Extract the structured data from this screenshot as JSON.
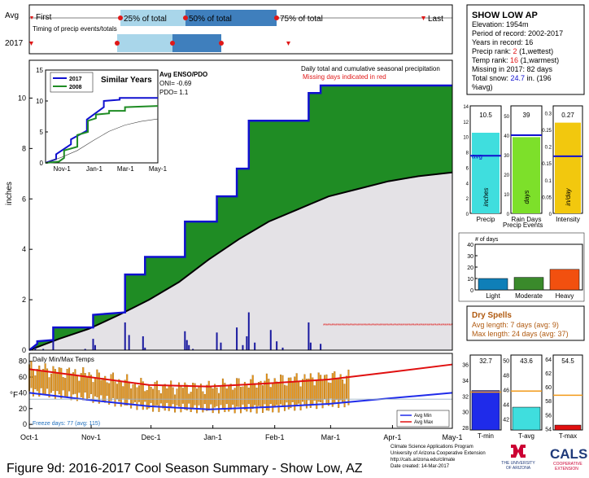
{
  "caption": "Figure 9d: 2016-2017 Cool Season Summary - Show Low, AZ",
  "colors": {
    "precip_green": "#1f8c24",
    "precip_blue": "#1010d0",
    "normal_gray": "#e4e2e6",
    "deficit_brown": "#b38728",
    "timing_light": "#a9d6ea",
    "timing_dark": "#3f7fbd",
    "marker_red": "#e01818",
    "temp_orange": "#e89418",
    "tmin_blue": "#1f2bea",
    "tavg_cyan": "#3fdede",
    "tmax_red": "#e01010",
    "precip_cyan": "#3fdede",
    "raindays_green": "#7de02a",
    "intensity_yellow": "#f2c80e",
    "spell_light": "#0f7fb8",
    "spell_moderate": "#3a8a2b",
    "spell_heavy": "#f2500f",
    "dry_title": "#b05a10"
  },
  "timing": {
    "title": "Timing of precip events/totals",
    "row_labels": [
      "Avg",
      "2017"
    ],
    "markers": [
      "First",
      "25% of total",
      "50% of total",
      "75% of total",
      "Last"
    ]
  },
  "info": {
    "title": "SHOW LOW AP",
    "elevation": "Elevation: 1954m",
    "period": "Period of record: 2002-2017",
    "years": "Years in record: 16",
    "precip_rank_label": "Precip rank:",
    "precip_rank_value": "2",
    "precip_rank_note": "(1,wettest)",
    "temp_rank_label": "Temp rank:",
    "temp_rank_value": "16",
    "temp_rank_note": "(1,warmest)",
    "missing": "Missing in 2017: 82 days",
    "snow_label": "Total snow:",
    "snow_value": "24.7",
    "snow_unit": "in. (196",
    "snow_note": "%avg)"
  },
  "main": {
    "ylabel": "inches",
    "title": "Daily total and cumulative seasonal precipitation",
    "missing_text": "Missing days indicated in red",
    "x_ticks": [
      "Oct-1",
      "Nov-1",
      "Dec-1",
      "Jan-1",
      "Feb-1",
      "Mar-1",
      "Apr-1",
      "May-1"
    ],
    "y_ticks": [
      "0",
      "2",
      "4",
      "6",
      "8",
      "10"
    ]
  },
  "similar": {
    "title": "Similar Years",
    "legend": [
      "2017",
      "2008"
    ],
    "x_ticks": [
      "Nov-1",
      "Jan-1",
      "Mar-1",
      "May-1"
    ],
    "y_ticks": [
      "0",
      "5",
      "10",
      "15"
    ],
    "enso_title": "Avg ENSO/PDO",
    "oni": "ONI= -0.69",
    "pdo": "PDO= 1.1"
  },
  "temps": {
    "title": "Daily Min/Max Temps",
    "ylabel": "°F",
    "y_ticks": [
      "0",
      "20",
      "40",
      "60",
      "80"
    ],
    "freeze": "Freeze days: 77 (avg: 115)",
    "legend": [
      "Avg Min",
      "Avg Max"
    ]
  },
  "precip_events": {
    "title": "Precip Events",
    "panels": [
      {
        "label": "Precip",
        "unit": "inches",
        "value": "10.5",
        "ticks": [
          "0",
          "2",
          "4",
          "6",
          "8",
          "10",
          "12",
          "14"
        ],
        "avg_label": "avg"
      },
      {
        "label": "Rain Days",
        "unit": "days",
        "value": "39",
        "ticks": [
          "0",
          "10",
          "20",
          "30",
          "40",
          "50"
        ]
      },
      {
        "label": "Intensity",
        "unit": "in/day",
        "value": "0.27",
        "ticks": [
          "0",
          "0.05",
          "0.1",
          "0.15",
          "0.2",
          "0.25",
          "0.3"
        ]
      }
    ]
  },
  "spells": {
    "ylabel": "# of days",
    "ticks": [
      "0",
      "10",
      "20",
      "30",
      "40"
    ],
    "categories": [
      "Light",
      "Moderate",
      "Heavy"
    ]
  },
  "dry_spells": {
    "title": "Dry Spells",
    "avg": "Avg length: 7 days (avg: 9)",
    "max": "Max length: 24 days (avg: 37)"
  },
  "temp_summary": {
    "panels": [
      {
        "label": "T-min",
        "value": "32.7",
        "ticks": [
          "28",
          "30",
          "32",
          "34",
          "36"
        ]
      },
      {
        "label": "T-avg",
        "value": "43.6",
        "ticks": [
          "42",
          "44",
          "46",
          "48",
          "50"
        ]
      },
      {
        "label": "T-max",
        "value": "54.5",
        "ticks": [
          "54",
          "56",
          "58",
          "60",
          "62",
          "64"
        ]
      }
    ]
  },
  "footer": {
    "line1": "Climate Science Applications Program",
    "line2": "University of Arizona Cooperative Extension",
    "line3": "http://cals.arizona.edu/climate",
    "line4": "Date created: 14-Mar-2017",
    "ua1": "THE UNIVERSITY",
    "ua2": "OF ARIZONA",
    "cals": "CALS",
    "cals_sub1": "COOPERATIVE",
    "cals_sub2": "EXTENSION"
  },
  "chart_data": [
    {
      "type": "area",
      "title": "Daily total and cumulative seasonal precipitation",
      "ylabel": "inches",
      "ylim": [
        0,
        11.5
      ],
      "x_axis": "days since Oct-1",
      "observed_cumulative": {
        "x": [
          0,
          4,
          4,
          12,
          12,
          32,
          32,
          48,
          48,
          58,
          58,
          78,
          78,
          94,
          94,
          104,
          104,
          110,
          110,
          140,
          140,
          146,
          146,
          176,
          176,
          212
        ],
        "y": [
          0,
          0.25,
          0.35,
          0.4,
          0.9,
          0.9,
          1.4,
          1.5,
          3.0,
          3.0,
          3.7,
          3.7,
          5.1,
          5.1,
          6.1,
          6.1,
          7.2,
          7.2,
          9.1,
          9.1,
          10.2,
          10.2,
          10.5,
          10.5,
          10.5,
          10.5
        ]
      },
      "average_cumulative": {
        "x": [
          0,
          15,
          30,
          45,
          60,
          75,
          90,
          105,
          120,
          135,
          150,
          165,
          180,
          195,
          212
        ],
        "y": [
          0,
          0.45,
          0.85,
          1.4,
          2.0,
          2.7,
          3.6,
          4.4,
          5.1,
          5.6,
          6.1,
          6.4,
          6.7,
          6.9,
          7.05
        ]
      },
      "daily_bars": {
        "x": [
          3,
          7,
          12,
          28,
          32,
          33,
          48,
          50,
          57,
          58,
          78,
          79,
          80,
          82,
          94,
          96,
          104,
          107,
          109,
          110,
          113,
          121,
          124,
          127,
          140,
          141,
          146
        ],
        "y": [
          0.1,
          0.05,
          0.4,
          0.05,
          0.45,
          0.2,
          1.1,
          0.6,
          0.55,
          0.1,
          0.75,
          0.4,
          0.2,
          0.05,
          0.7,
          0.3,
          0.9,
          0.2,
          0.55,
          1.5,
          0.3,
          0.8,
          0.35,
          0.1,
          1.1,
          0.3,
          0.25
        ]
      },
      "missing_days": {
        "start": 148,
        "end": 212
      }
    },
    {
      "type": "line",
      "title": "Similar Years",
      "ylim": [
        0,
        15
      ],
      "x_axis": "days since Oct-1",
      "series": [
        {
          "name": "2017",
          "x": [
            0,
            20,
            20,
            48,
            48,
            78,
            78,
            110,
            110,
            140,
            140,
            212
          ],
          "y": [
            0,
            0.6,
            1.4,
            3.0,
            3.8,
            5.2,
            7.0,
            9.0,
            10.0,
            10.2,
            10.5,
            10.5
          ]
        },
        {
          "name": "2008",
          "x": [
            0,
            25,
            35,
            35,
            60,
            60,
            80,
            80,
            95,
            95,
            120,
            120,
            150,
            150,
            212
          ],
          "y": [
            0,
            0.2,
            0.8,
            2.0,
            2.6,
            4.5,
            5.0,
            6.8,
            7.2,
            7.8,
            8.0,
            8.4,
            8.4,
            9.0,
            9.2
          ]
        },
        {
          "name": "",
          "x": [
            0,
            30,
            60,
            90,
            120,
            150,
            180,
            212
          ],
          "y": [
            0,
            0.9,
            2.0,
            3.6,
            5.1,
            6.1,
            6.7,
            7.1
          ]
        }
      ]
    },
    {
      "type": "line",
      "title": "Daily Min/Max Temps",
      "ylim": [
        -5,
        90
      ],
      "x_axis": "days since Oct-1",
      "series": [
        {
          "name": "Avg Max",
          "x": [
            0,
            30,
            60,
            90,
            120,
            150,
            180,
            212
          ],
          "y": [
            70,
            60,
            50,
            48,
            52,
            57,
            66,
            76
          ]
        },
        {
          "name": "Avg Min",
          "x": [
            0,
            30,
            60,
            90,
            120,
            150,
            180,
            212
          ],
          "y": [
            40,
            31,
            23,
            19,
            22,
            26,
            33,
            40
          ]
        },
        {
          "name": "Freeze line",
          "x": [
            0,
            212
          ],
          "y": [
            32,
            32
          ]
        }
      ],
      "observed_range_days": [
        0,
        160
      ],
      "observed_max_trend": {
        "x": [
          0,
          30,
          60,
          90,
          120,
          150
        ],
        "y": [
          72,
          63,
          48,
          47,
          55,
          60
        ]
      },
      "observed_min_trend": {
        "x": [
          0,
          30,
          60,
          90,
          120,
          150
        ],
        "y": [
          42,
          34,
          22,
          20,
          20,
          27
        ]
      }
    },
    {
      "type": "bar",
      "categories": [
        "Precip",
        "Rain Days",
        "Intensity"
      ],
      "values": [
        10.5,
        39,
        0.27
      ],
      "averages": [
        7.5,
        40,
        0.17
      ],
      "ylims": [
        [
          0,
          14
        ],
        [
          0,
          55
        ],
        [
          0,
          0.32
        ]
      ]
    },
    {
      "type": "bar",
      "ylabel": "# of days",
      "categories": [
        "Light",
        "Moderate",
        "Heavy"
      ],
      "values": [
        10,
        11,
        18
      ],
      "ylim": [
        0,
        40
      ]
    },
    {
      "type": "bar",
      "categories": [
        "T-min",
        "T-avg",
        "T-max"
      ],
      "values": [
        32.7,
        43.6,
        54.5
      ],
      "averages": [
        32.5,
        45.8,
        58.8
      ],
      "ylims": [
        [
          27.7,
          37.2
        ],
        [
          40.5,
          50.7
        ],
        [
          53.8,
          64.6
        ]
      ]
    }
  ]
}
